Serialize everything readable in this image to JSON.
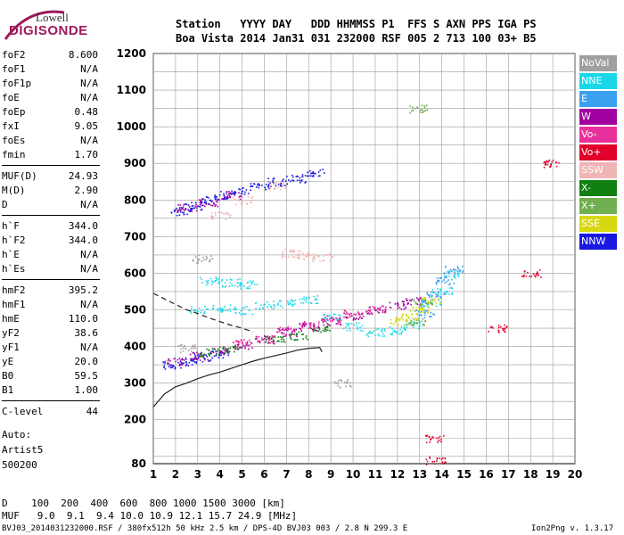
{
  "logo": {
    "line1": "Lowell",
    "line2": "DIGISONDE",
    "color": "#9c1a5a"
  },
  "header": {
    "row1": "Station   YYYY DAY   DDD HHMMSS P1  FFS S AXN PPS IGA PS",
    "row2": "Boa Vista 2014 Jan31 031 232000 RSF 005 2 713 100 03+ B5"
  },
  "params": [
    {
      "k": "foF2",
      "v": "8.600"
    },
    {
      "k": "foF1",
      "v": "N/A"
    },
    {
      "k": "foF1p",
      "v": "N/A"
    },
    {
      "k": "foE",
      "v": "N/A"
    },
    {
      "k": "foEp",
      "v": "0.48"
    },
    {
      "k": "fxI",
      "v": "9.05"
    },
    {
      "k": "foEs",
      "v": "N/A"
    },
    {
      "k": "fmin",
      "v": "1.70"
    },
    {
      "k": "MUF(D)",
      "v": "24.93"
    },
    {
      "k": "M(D)",
      "v": "2.90"
    },
    {
      "k": "D",
      "v": "N/A"
    },
    {
      "k": "h`F",
      "v": "344.0"
    },
    {
      "k": "h`F2",
      "v": "344.0"
    },
    {
      "k": "h`E",
      "v": "N/A"
    },
    {
      "k": "h`Es",
      "v": "N/A"
    },
    {
      "k": "hmF2",
      "v": "395.2"
    },
    {
      "k": "hmF1",
      "v": "N/A"
    },
    {
      "k": "hmE",
      "v": "110.0"
    },
    {
      "k": "yF2",
      "v": "38.6"
    },
    {
      "k": "yF1",
      "v": "N/A"
    },
    {
      "k": "yE",
      "v": "20.0"
    },
    {
      "k": "B0",
      "v": "59.5"
    },
    {
      "k": "B1",
      "v": "1.00"
    },
    {
      "k": "C-level",
      "v": "44"
    }
  ],
  "auto": {
    "line1": "Auto:",
    "line2": "Artist5",
    "line3": "500200"
  },
  "legend": [
    {
      "label": "NoVal",
      "color": "#a0a0a0"
    },
    {
      "label": "NNE",
      "color": "#1ad7e8"
    },
    {
      "label": "E",
      "color": "#3aa0f0"
    },
    {
      "label": "W",
      "color": "#a000a0"
    },
    {
      "label": "Vo-",
      "color": "#e8309c"
    },
    {
      "label": "Vo+",
      "color": "#e0002a"
    },
    {
      "label": "SSW",
      "color": "#f0b4b4"
    },
    {
      "label": "X-",
      "color": "#108010"
    },
    {
      "label": "X+",
      "color": "#70b050"
    },
    {
      "label": "SSE",
      "color": "#d8d810"
    },
    {
      "label": "NNW",
      "color": "#1818e0"
    }
  ],
  "footer": {
    "d_row": "D    100  200  400  600  800 1000 1500 3000 [km]",
    "muf_row": "MUF   9.0  9.1  9.4 10.0 10.9 12.1 15.7 24.9 [MHz]",
    "file_info": "BVJ03_2014031232000.RSF / 380fx512h 50 kHz 2.5 km / DPS-4D BVJ03 003 / 2.8 N 299.3 E",
    "version": "Ion2Png v. 1.3.17"
  },
  "chart_data": {
    "type": "scatter",
    "xlim": [
      1,
      20
    ],
    "ylim": [
      80,
      1200
    ],
    "xticks": [
      1,
      2,
      3,
      4,
      5,
      6,
      7,
      8,
      9,
      10,
      11,
      12,
      13,
      14,
      15,
      16,
      17,
      18,
      19,
      20
    ],
    "yticks": [
      80,
      200,
      300,
      400,
      500,
      600,
      700,
      800,
      900,
      1000,
      1100,
      1200
    ],
    "grid": true,
    "series": [
      {
        "name": "NNW",
        "points": [
          [
            1.8,
            350
          ],
          [
            2.5,
            360
          ],
          [
            3.2,
            370
          ],
          [
            4,
            380
          ],
          [
            2.2,
            770
          ],
          [
            2.8,
            785
          ],
          [
            3.5,
            800
          ],
          [
            4.2,
            815
          ],
          [
            5,
            825
          ],
          [
            5.8,
            840
          ],
          [
            6.6,
            850
          ],
          [
            7.4,
            860
          ],
          [
            8.3,
            875
          ]
        ]
      },
      {
        "name": "W",
        "points": [
          [
            2,
            360
          ],
          [
            3,
            375
          ],
          [
            4,
            390
          ],
          [
            5,
            405
          ],
          [
            6,
            420
          ],
          [
            7,
            440
          ],
          [
            8,
            455
          ],
          [
            9,
            470
          ],
          [
            10,
            485
          ],
          [
            11,
            500
          ],
          [
            12,
            515
          ],
          [
            12.8,
            525
          ],
          [
            2.5,
            780
          ],
          [
            3.5,
            795
          ],
          [
            4.5,
            815
          ]
        ]
      },
      {
        "name": "NNE",
        "points": [
          [
            3,
            500
          ],
          [
            4,
            505
          ],
          [
            5,
            500
          ],
          [
            6,
            515
          ],
          [
            7,
            520
          ],
          [
            8,
            530
          ],
          [
            9,
            480
          ],
          [
            10,
            455
          ],
          [
            11,
            440
          ],
          [
            12,
            445
          ],
          [
            12.7,
            460
          ],
          [
            13.5,
            520
          ],
          [
            14,
            555
          ],
          [
            14.5,
            600
          ],
          [
            3.5,
            580
          ],
          [
            4.5,
            575
          ],
          [
            5.2,
            570
          ]
        ]
      },
      {
        "name": "E",
        "points": [
          [
            13.2,
            490
          ],
          [
            13.7,
            540
          ],
          [
            14.1,
            580
          ],
          [
            14.5,
            610
          ]
        ]
      },
      {
        "name": "SSE",
        "points": [
          [
            12,
            470
          ],
          [
            12.5,
            480
          ],
          [
            13,
            500
          ],
          [
            13.5,
            525
          ]
        ]
      },
      {
        "name": "X-",
        "points": [
          [
            3.5,
            385
          ],
          [
            4.5,
            395
          ],
          [
            6.5,
            420
          ],
          [
            7.5,
            430
          ],
          [
            8.5,
            450
          ]
        ]
      },
      {
        "name": "Vo-",
        "points": [
          [
            5,
            410
          ],
          [
            6,
            420
          ],
          [
            7,
            445
          ],
          [
            8,
            460
          ],
          [
            9,
            475
          ],
          [
            10,
            490
          ],
          [
            11,
            505
          ]
        ]
      },
      {
        "name": "Vo+",
        "points": [
          [
            13.7,
            90
          ],
          [
            13.7,
            150
          ],
          [
            16.5,
            450
          ],
          [
            18,
            600
          ],
          [
            19,
            900
          ]
        ]
      },
      {
        "name": "SSW",
        "points": [
          [
            4,
            760
          ],
          [
            5,
            800
          ],
          [
            6.5,
            840
          ],
          [
            7.2,
            655
          ],
          [
            7.8,
            650
          ],
          [
            8.6,
            645
          ]
        ]
      },
      {
        "name": "X+",
        "points": [
          [
            12.9,
            1050
          ],
          [
            12.8,
            470
          ],
          [
            13.1,
            520
          ]
        ]
      },
      {
        "name": "NoVal",
        "points": [
          [
            2.5,
            395
          ],
          [
            3.2,
            640
          ],
          [
            9.5,
            300
          ]
        ]
      }
    ],
    "curves": [
      {
        "style": "solid",
        "x": [
          1.0,
          1.5,
          2.0,
          2.5,
          3.0,
          3.5,
          4.0,
          4.5,
          5.0,
          5.5,
          6.0,
          6.5,
          7.0,
          7.5,
          8.0,
          8.5,
          8.6
        ],
        "y": [
          235,
          270,
          290,
          300,
          312,
          322,
          330,
          340,
          350,
          360,
          368,
          375,
          382,
          390,
          395,
          397,
          385
        ]
      },
      {
        "style": "dashed",
        "x": [
          1.0,
          1.5,
          2.0,
          2.5,
          3.0,
          3.5,
          4.0,
          4.5,
          5.0,
          5.5
        ],
        "y": [
          545,
          530,
          515,
          500,
          490,
          478,
          468,
          458,
          450,
          440
        ]
      }
    ]
  }
}
